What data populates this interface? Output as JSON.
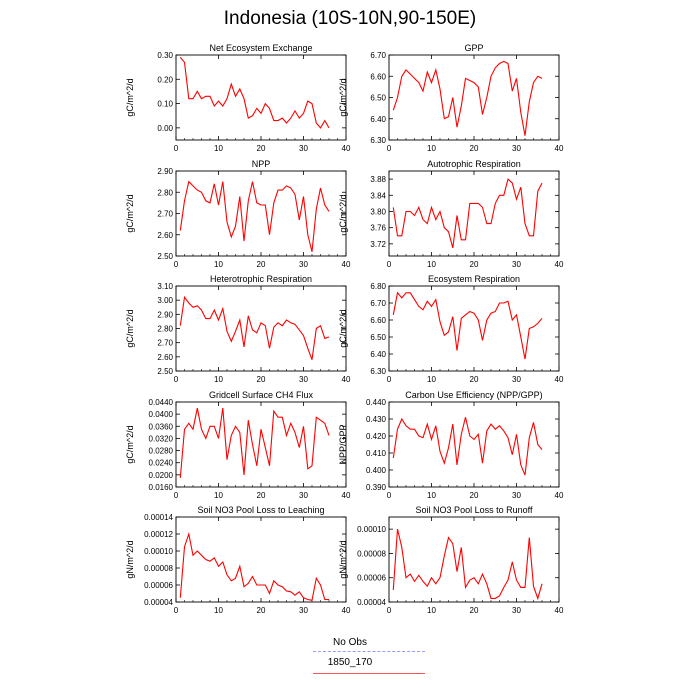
{
  "title": "Indonesia (10S-10N,90-150E)",
  "legend": {
    "items": [
      {
        "label": "No Obs",
        "color": "#9999ff",
        "style": "dashed"
      },
      {
        "label": "1850_170",
        "color": "#ff0000",
        "style": "solid"
      }
    ]
  },
  "colors": {
    "series": "#ff0000"
  },
  "chart_data": [
    {
      "type": "line",
      "title": "Net Ecosystem Exchange",
      "ylabel": "gC/m^2/d",
      "xlim": [
        0,
        40
      ],
      "ylim": [
        -0.05,
        0.3
      ],
      "xticks": [
        "0",
        "10",
        "20",
        "30",
        "40"
      ],
      "yticks": [
        "0.00",
        "0.10",
        "0.20",
        "0.30"
      ],
      "series": [
        {
          "name": "1850_170",
          "x": [
            1,
            2,
            3,
            4,
            5,
            6,
            7,
            8,
            9,
            10,
            11,
            12,
            13,
            14,
            15,
            16,
            17,
            18,
            19,
            20,
            21,
            22,
            23,
            24,
            25,
            26,
            27,
            28,
            29,
            30,
            31,
            32,
            33,
            34,
            35,
            36
          ],
          "y": [
            0.29,
            0.27,
            0.12,
            0.12,
            0.15,
            0.12,
            0.13,
            0.13,
            0.09,
            0.11,
            0.09,
            0.12,
            0.18,
            0.13,
            0.16,
            0.12,
            0.04,
            0.05,
            0.08,
            0.06,
            0.1,
            0.08,
            0.03,
            0.03,
            0.04,
            0.02,
            0.04,
            0.07,
            0.04,
            0.06,
            0.11,
            0.1,
            0.02,
            0.0,
            0.03,
            0.0
          ]
        }
      ]
    },
    {
      "type": "line",
      "title": "GPP",
      "ylabel": "gC/m^2/d",
      "xlim": [
        0,
        40
      ],
      "ylim": [
        6.3,
        6.7
      ],
      "xticks": [
        "0",
        "10",
        "20",
        "30",
        "40"
      ],
      "yticks": [
        "6.30",
        "6.40",
        "6.50",
        "6.60",
        "6.70"
      ],
      "series": [
        {
          "name": "1850_170",
          "x": [
            1,
            2,
            3,
            4,
            5,
            6,
            7,
            8,
            9,
            10,
            11,
            12,
            13,
            14,
            15,
            16,
            17,
            18,
            19,
            20,
            21,
            22,
            23,
            24,
            25,
            26,
            27,
            28,
            29,
            30,
            31,
            32,
            33,
            34,
            35,
            36
          ],
          "y": [
            6.44,
            6.5,
            6.6,
            6.63,
            6.61,
            6.59,
            6.57,
            6.53,
            6.62,
            6.57,
            6.63,
            6.54,
            6.4,
            6.41,
            6.5,
            6.36,
            6.46,
            6.59,
            6.58,
            6.57,
            6.55,
            6.42,
            6.5,
            6.6,
            6.64,
            6.66,
            6.67,
            6.66,
            6.53,
            6.59,
            6.43,
            6.32,
            6.48,
            6.57,
            6.6,
            6.59
          ]
        }
      ]
    },
    {
      "type": "line",
      "title": "NPP",
      "ylabel": "gC/m^2/d",
      "xlim": [
        0,
        40
      ],
      "ylim": [
        2.5,
        2.9
      ],
      "xticks": [
        "0",
        "10",
        "20",
        "30",
        "40"
      ],
      "yticks": [
        "2.50",
        "2.60",
        "2.70",
        "2.80",
        "2.90"
      ],
      "series": [
        {
          "name": "1850_170",
          "x": [
            1,
            2,
            3,
            4,
            5,
            6,
            7,
            8,
            9,
            10,
            11,
            12,
            13,
            14,
            15,
            16,
            17,
            18,
            19,
            20,
            21,
            22,
            23,
            24,
            25,
            26,
            27,
            28,
            29,
            30,
            31,
            32,
            33,
            34,
            35,
            36
          ],
          "y": [
            2.62,
            2.76,
            2.85,
            2.83,
            2.81,
            2.8,
            2.76,
            2.75,
            2.84,
            2.74,
            2.85,
            2.66,
            2.59,
            2.64,
            2.78,
            2.57,
            2.76,
            2.85,
            2.75,
            2.74,
            2.74,
            2.6,
            2.75,
            2.81,
            2.81,
            2.83,
            2.82,
            2.79,
            2.67,
            2.78,
            2.6,
            2.52,
            2.72,
            2.82,
            2.74,
            2.71
          ]
        }
      ]
    },
    {
      "type": "line",
      "title": "Autotrophic Respiration",
      "ylabel": "gC/m^2/d",
      "xlim": [
        0,
        40
      ],
      "ylim": [
        3.69,
        3.9
      ],
      "xticks": [
        "0",
        "10",
        "20",
        "30",
        "40"
      ],
      "yticks": [
        "3.72",
        "3.76",
        "3.80",
        "3.84",
        "3.88"
      ],
      "series": [
        {
          "name": "1850_170",
          "x": [
            1,
            2,
            3,
            4,
            5,
            6,
            7,
            8,
            9,
            10,
            11,
            12,
            13,
            14,
            15,
            16,
            17,
            18,
            19,
            20,
            21,
            22,
            23,
            24,
            25,
            26,
            27,
            28,
            29,
            30,
            31,
            32,
            33,
            34,
            35,
            36
          ],
          "y": [
            3.81,
            3.74,
            3.74,
            3.8,
            3.8,
            3.79,
            3.81,
            3.78,
            3.77,
            3.81,
            3.78,
            3.8,
            3.76,
            3.75,
            3.71,
            3.79,
            3.73,
            3.73,
            3.82,
            3.82,
            3.82,
            3.81,
            3.77,
            3.77,
            3.82,
            3.84,
            3.84,
            3.88,
            3.87,
            3.83,
            3.86,
            3.77,
            3.74,
            3.74,
            3.85,
            3.87
          ]
        }
      ]
    },
    {
      "type": "line",
      "title": "Heterotrophic Respiration",
      "ylabel": "gC/m^2/d",
      "xlim": [
        0,
        40
      ],
      "ylim": [
        2.5,
        3.1
      ],
      "xticks": [
        "0",
        "10",
        "20",
        "30",
        "40"
      ],
      "yticks": [
        "2.50",
        "2.60",
        "2.70",
        "2.80",
        "2.90",
        "3.00",
        "3.10"
      ],
      "series": [
        {
          "name": "1850_170",
          "x": [
            1,
            2,
            3,
            4,
            5,
            6,
            7,
            8,
            9,
            10,
            11,
            12,
            13,
            14,
            15,
            16,
            17,
            18,
            19,
            20,
            21,
            22,
            23,
            24,
            25,
            26,
            27,
            28,
            29,
            30,
            31,
            32,
            33,
            34,
            35,
            36
          ],
          "y": [
            2.82,
            3.02,
            2.98,
            2.95,
            2.96,
            2.93,
            2.87,
            2.87,
            2.93,
            2.86,
            2.94,
            2.78,
            2.71,
            2.78,
            2.86,
            2.67,
            2.89,
            2.79,
            2.77,
            2.84,
            2.82,
            2.66,
            2.81,
            2.84,
            2.82,
            2.86,
            2.84,
            2.83,
            2.79,
            2.75,
            2.66,
            2.58,
            2.8,
            2.82,
            2.73,
            2.74
          ]
        }
      ]
    },
    {
      "type": "line",
      "title": "Ecosystem Respiration",
      "ylabel": "gC/m^2/d",
      "xlim": [
        0,
        40
      ],
      "ylim": [
        6.3,
        6.8
      ],
      "xticks": [
        "0",
        "10",
        "20",
        "30",
        "40"
      ],
      "yticks": [
        "6.30",
        "6.40",
        "6.50",
        "6.60",
        "6.70",
        "6.80"
      ],
      "series": [
        {
          "name": "1850_170",
          "x": [
            1,
            2,
            3,
            4,
            5,
            6,
            7,
            8,
            9,
            10,
            11,
            12,
            13,
            14,
            15,
            16,
            17,
            18,
            19,
            20,
            21,
            22,
            23,
            24,
            25,
            26,
            27,
            28,
            29,
            30,
            31,
            32,
            33,
            34,
            35,
            36
          ],
          "y": [
            6.63,
            6.76,
            6.73,
            6.76,
            6.76,
            6.72,
            6.68,
            6.66,
            6.71,
            6.68,
            6.72,
            6.59,
            6.51,
            6.53,
            6.62,
            6.42,
            6.61,
            6.63,
            6.65,
            6.64,
            6.6,
            6.48,
            6.6,
            6.64,
            6.65,
            6.7,
            6.7,
            6.71,
            6.6,
            6.63,
            6.5,
            6.37,
            6.55,
            6.56,
            6.58,
            6.61
          ]
        }
      ]
    },
    {
      "type": "line",
      "title": "Gridcell Surface CH4 Flux",
      "ylabel": "gC/m^2/d",
      "xlim": [
        0,
        40
      ],
      "ylim": [
        0.016,
        0.044
      ],
      "xticks": [
        "0",
        "10",
        "20",
        "30",
        "40"
      ],
      "yticks": [
        "0.0160",
        "0.0200",
        "0.0240",
        "0.0280",
        "0.0320",
        "0.0360",
        "0.0400",
        "0.0440"
      ],
      "series": [
        {
          "name": "1850_170",
          "x": [
            1,
            2,
            3,
            4,
            5,
            6,
            7,
            8,
            9,
            10,
            11,
            12,
            13,
            14,
            15,
            16,
            17,
            18,
            19,
            20,
            21,
            22,
            23,
            24,
            25,
            26,
            27,
            28,
            29,
            30,
            31,
            32,
            33,
            34,
            35,
            36
          ],
          "y": [
            0.019,
            0.035,
            0.037,
            0.035,
            0.042,
            0.035,
            0.032,
            0.036,
            0.036,
            0.032,
            0.042,
            0.025,
            0.033,
            0.036,
            0.034,
            0.02,
            0.038,
            0.03,
            0.023,
            0.035,
            0.029,
            0.023,
            0.041,
            0.039,
            0.039,
            0.033,
            0.037,
            0.034,
            0.029,
            0.036,
            0.022,
            0.023,
            0.039,
            0.038,
            0.037,
            0.033
          ]
        }
      ]
    },
    {
      "type": "line",
      "title": "Carbon Use Efficiency (NPP/GPP)",
      "ylabel": "NPP/GPP",
      "xlim": [
        0,
        40
      ],
      "ylim": [
        0.39,
        0.44
      ],
      "xticks": [
        "0",
        "10",
        "20",
        "30",
        "40"
      ],
      "yticks": [
        "0.390",
        "0.400",
        "0.410",
        "0.420",
        "0.430",
        "0.440"
      ],
      "series": [
        {
          "name": "1850_170",
          "x": [
            1,
            2,
            3,
            4,
            5,
            6,
            7,
            8,
            9,
            10,
            11,
            12,
            13,
            14,
            15,
            16,
            17,
            18,
            19,
            20,
            21,
            22,
            23,
            24,
            25,
            26,
            27,
            28,
            29,
            30,
            31,
            32,
            33,
            34,
            35,
            36
          ],
          "y": [
            0.407,
            0.424,
            0.43,
            0.426,
            0.424,
            0.424,
            0.42,
            0.419,
            0.427,
            0.418,
            0.426,
            0.411,
            0.404,
            0.413,
            0.427,
            0.403,
            0.421,
            0.431,
            0.42,
            0.418,
            0.421,
            0.404,
            0.423,
            0.427,
            0.424,
            0.426,
            0.423,
            0.419,
            0.409,
            0.421,
            0.403,
            0.397,
            0.419,
            0.428,
            0.415,
            0.412
          ]
        }
      ]
    },
    {
      "type": "line",
      "title": "Soil NO3 Pool Loss to Leaching",
      "ylabel": "gN/m^2/d",
      "xlim": [
        0,
        40
      ],
      "ylim": [
        4e-05,
        0.00014
      ],
      "xticks": [
        "0",
        "10",
        "20",
        "30",
        "40"
      ],
      "yticks": [
        "0.00004",
        "0.00006",
        "0.00008",
        "0.00010",
        "0.00012",
        "0.00014"
      ],
      "series": [
        {
          "name": "1850_170",
          "x": [
            1,
            2,
            3,
            4,
            5,
            6,
            7,
            8,
            9,
            10,
            11,
            12,
            13,
            14,
            15,
            16,
            17,
            18,
            19,
            20,
            21,
            22,
            23,
            24,
            25,
            26,
            27,
            28,
            29,
            30,
            31,
            32,
            33,
            34,
            35,
            36
          ],
          "y": [
            4.5e-05,
            0.000105,
            0.00012,
            9.5e-05,
            0.0001,
            9.5e-05,
            9e-05,
            8.8e-05,
            9.2e-05,
            8.2e-05,
            8.7e-05,
            7.2e-05,
            6.5e-05,
            6.8e-05,
            8.2e-05,
            5.8e-05,
            6.2e-05,
            7e-05,
            6e-05,
            6e-05,
            6e-05,
            5e-05,
            6.5e-05,
            6e-05,
            5.8e-05,
            5.3e-05,
            5.2e-05,
            4.8e-05,
            5.2e-05,
            4.5e-05,
            4.3e-05,
            4.2e-05,
            6.8e-05,
            6e-05,
            4.3e-05,
            4.3e-05
          ]
        }
      ]
    },
    {
      "type": "line",
      "title": "Soil NO3 Pool Loss to Runoff",
      "ylabel": "gN/m^2/d",
      "xlim": [
        0,
        40
      ],
      "ylim": [
        4e-05,
        0.00011
      ],
      "xticks": [
        "0",
        "10",
        "20",
        "30",
        "40"
      ],
      "yticks": [
        "0.00004",
        "0.00006",
        "0.00008",
        "0.00010"
      ],
      "series": [
        {
          "name": "1850_170",
          "x": [
            1,
            2,
            3,
            4,
            5,
            6,
            7,
            8,
            9,
            10,
            11,
            12,
            13,
            14,
            15,
            16,
            17,
            18,
            19,
            20,
            21,
            22,
            23,
            24,
            25,
            26,
            27,
            28,
            29,
            30,
            31,
            32,
            33,
            34,
            35,
            36
          ],
          "y": [
            5e-05,
            0.0001,
            8.5e-05,
            6e-05,
            6.3e-05,
            5.7e-05,
            6.2e-05,
            5.7e-05,
            5.3e-05,
            6e-05,
            5.5e-05,
            6e-05,
            7.8e-05,
            9.3e-05,
            8.8e-05,
            6.5e-05,
            8.5e-05,
            5.2e-05,
            5.8e-05,
            6e-05,
            5.5e-05,
            6.3e-05,
            5.5e-05,
            4.3e-05,
            4.3e-05,
            4.5e-05,
            5.2e-05,
            5.8e-05,
            7.3e-05,
            5.8e-05,
            5.2e-05,
            5.2e-05,
            9.3e-05,
            5.3e-05,
            4.3e-05,
            5.5e-05
          ]
        }
      ]
    }
  ]
}
